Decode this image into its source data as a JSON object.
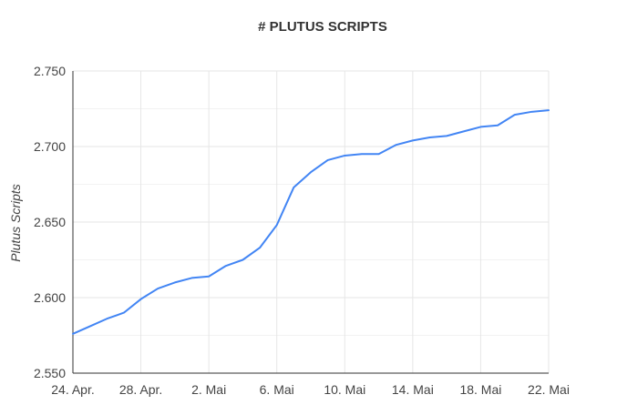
{
  "chart_data": {
    "type": "line",
    "title": "# PLUTUS SCRIPTS",
    "xlabel": "",
    "ylabel": "Plutus Scripts",
    "x_tick_labels": [
      "24. Apr.",
      "28. Apr.",
      "2. Mai",
      "6. Mai",
      "10. Mai",
      "14. Mai",
      "18. Mai",
      "22. Mai"
    ],
    "y_tick_labels": [
      "2.550",
      "2.600",
      "2.650",
      "2.700",
      "2.750"
    ],
    "ylim": [
      2550,
      2750
    ],
    "y_ticks": [
      2550,
      2600,
      2650,
      2700,
      2750
    ],
    "x_range_days": [
      0,
      28
    ],
    "x_tick_days": [
      0,
      4,
      8,
      12,
      16,
      20,
      24,
      28
    ],
    "grid": true,
    "legend": "none",
    "series": [
      {
        "color": "#4285f4",
        "x_days": [
          0,
          1,
          2,
          3,
          4,
          5,
          6,
          7,
          8,
          9,
          10,
          11,
          12,
          13,
          14,
          15,
          16,
          17,
          18,
          19,
          20,
          21,
          22,
          23,
          24,
          25,
          26,
          27,
          28
        ],
        "values": [
          2576,
          2581,
          2586,
          2590,
          2599,
          2606,
          2610,
          2613,
          2614,
          2621,
          2625,
          2633,
          2648,
          2673,
          2683,
          2691,
          2694,
          2695,
          2695,
          2701,
          2704,
          2706,
          2707,
          2710,
          2713,
          2714,
          2721,
          2723,
          2724
        ]
      }
    ]
  },
  "colors": {
    "line": "#4285f4",
    "grid": "#e6e6e6",
    "axis": "#333333",
    "text": "#444444",
    "title": "#333333"
  }
}
